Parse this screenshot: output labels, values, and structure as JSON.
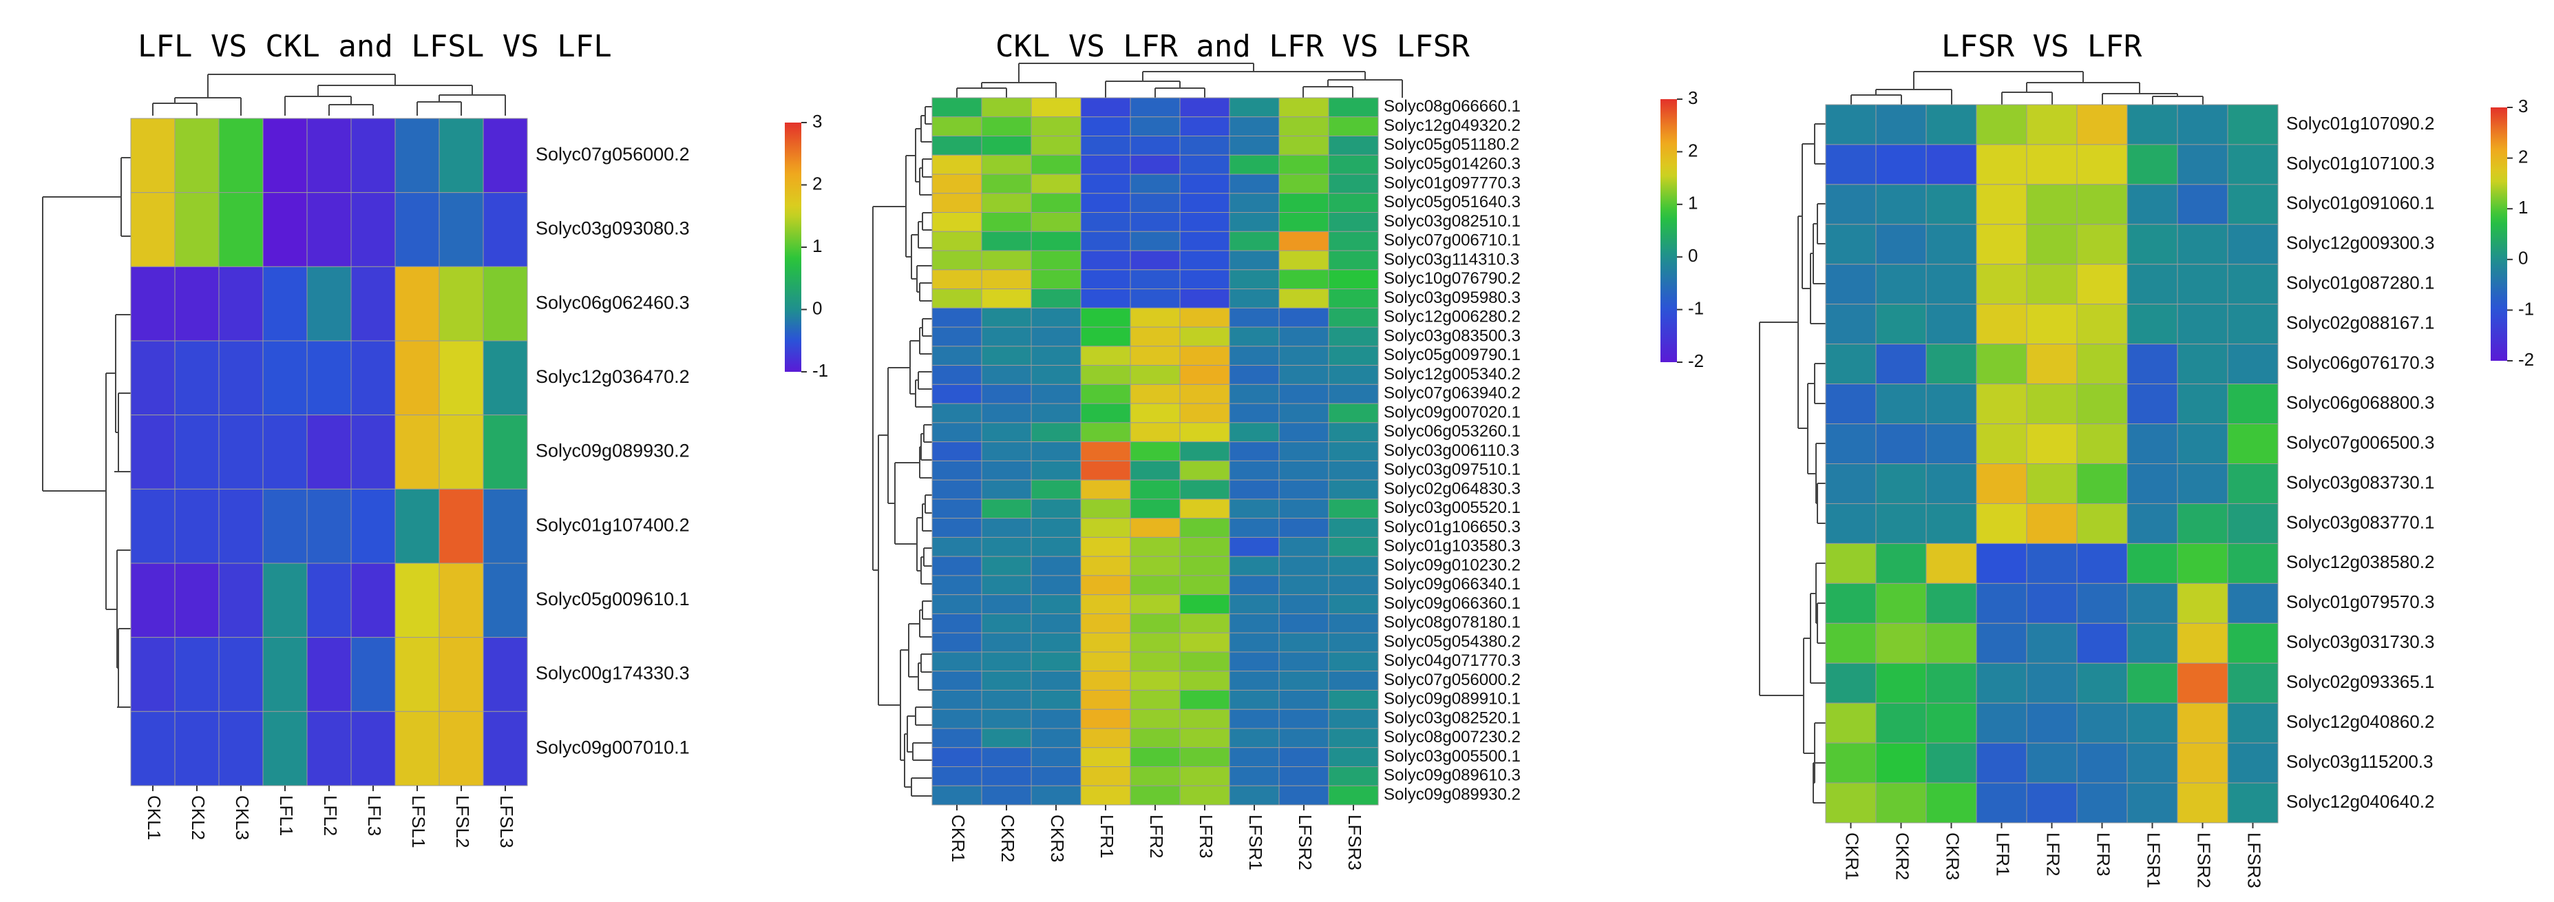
{
  "colors": {
    "scale": [
      "#5a1bd6",
      "#2b52d8",
      "#1f8f8f",
      "#27c43b",
      "#d7d21f",
      "#f0a71e",
      "#e3322a"
    ]
  },
  "chart_data": [
    {
      "type": "heatmap",
      "title": "LFL VS CKL and LFSL VS LFL",
      "columns": [
        "CKL1",
        "CKL2",
        "CKL3",
        "LFL1",
        "LFL2",
        "LFL3",
        "LFSL1",
        "LFSL2",
        "LFSL3"
      ],
      "rows": [
        "Solyc07g056000.2",
        "Solyc03g093080.3",
        "Solyc06g062460.3",
        "Solyc12g036470.2",
        "Solyc09g089930.2",
        "Solyc01g107400.2",
        "Solyc05g009610.1",
        "Solyc00g174330.3",
        "Solyc09g007010.1"
      ],
      "values": [
        [
          1.8,
          1.3,
          0.9,
          -1.0,
          -0.9,
          -0.8,
          -0.3,
          0.0,
          -0.9
        ],
        [
          1.8,
          1.3,
          0.9,
          -1.0,
          -0.9,
          -0.8,
          -0.4,
          -0.3,
          -0.6
        ],
        [
          -0.9,
          -0.9,
          -0.8,
          -0.5,
          -0.1,
          -0.7,
          2.0,
          1.4,
          1.2
        ],
        [
          -0.7,
          -0.6,
          -0.6,
          -0.5,
          -0.5,
          -0.6,
          2.0,
          1.6,
          0.0
        ],
        [
          -0.7,
          -0.6,
          -0.6,
          -0.6,
          -0.8,
          -0.7,
          1.9,
          1.7,
          0.4
        ],
        [
          -0.6,
          -0.6,
          -0.6,
          -0.4,
          -0.4,
          -0.5,
          0.0,
          2.7,
          -0.3
        ],
        [
          -0.9,
          -0.9,
          -0.7,
          0.0,
          -0.6,
          -0.8,
          1.6,
          1.9,
          -0.3
        ],
        [
          -0.7,
          -0.6,
          -0.6,
          0.0,
          -0.8,
          -0.4,
          1.7,
          1.9,
          -0.7
        ],
        [
          -0.6,
          -0.6,
          -0.6,
          0.0,
          -0.7,
          -0.7,
          1.8,
          1.9,
          -0.7
        ]
      ],
      "color_range": [
        -1,
        3
      ],
      "legend_ticks": [
        "3",
        "2",
        "1",
        "0",
        "-1"
      ],
      "legend_values": [
        3,
        2,
        1,
        0,
        -1
      ]
    },
    {
      "type": "heatmap",
      "title": "CKL VS LFR and LFR VS LFSR",
      "columns": [
        "CKR1",
        "CKR2",
        "CKR3",
        "LFR1",
        "LFR2",
        "LFR3",
        "LFSR1",
        "LFSR2",
        "LFSR3"
      ],
      "rows": [
        "Solyc08g066660.1",
        "Solyc12g049320.2",
        "Solyc05g051180.2",
        "Solyc05g014260.3",
        "Solyc01g097770.3",
        "Solyc05g051640.3",
        "Solyc03g082510.1",
        "Solyc07g006710.1",
        "Solyc03g114310.3",
        "Solyc10g076790.2",
        "Solyc03g095980.3",
        "Solyc12g006280.2",
        "Solyc03g083500.3",
        "Solyc05g009790.1",
        "Solyc12g005340.2",
        "Solyc07g063940.2",
        "Solyc09g007020.1",
        "Solyc06g053260.1",
        "Solyc03g006110.3",
        "Solyc03g097510.1",
        "Solyc02g064830.3",
        "Solyc03g005520.1",
        "Solyc01g106650.3",
        "Solyc01g103580.3",
        "Solyc09g010230.2",
        "Solyc09g066340.1",
        "Solyc09g066360.1",
        "Solyc08g078180.1",
        "Solyc05g054380.2",
        "Solyc04g071770.3",
        "Solyc07g056000.2",
        "Solyc09g089910.1",
        "Solyc03g082520.1",
        "Solyc08g007230.2",
        "Solyc03g005500.1",
        "Solyc09g089610.3",
        "Solyc09g089930.2"
      ],
      "values": [
        [
          0.5,
          1.3,
          1.6,
          -1.2,
          -0.7,
          -1.3,
          0.0,
          1.4,
          0.5
        ],
        [
          1.2,
          1.0,
          1.3,
          -1.0,
          -0.6,
          -1.1,
          -0.4,
          1.3,
          1.0
        ],
        [
          0.4,
          0.6,
          1.3,
          -0.9,
          -0.9,
          -0.8,
          -0.4,
          1.3,
          0.2
        ],
        [
          1.7,
          1.3,
          1.0,
          -1.1,
          -1.3,
          -0.9,
          0.5,
          1.0,
          0.4
        ],
        [
          1.9,
          1.1,
          1.4,
          -1.0,
          -0.6,
          -1.0,
          -0.5,
          1.1,
          0.3
        ],
        [
          1.9,
          1.3,
          1.0,
          -1.0,
          -0.8,
          -1.0,
          -0.3,
          0.7,
          0.5
        ],
        [
          1.6,
          1.0,
          1.2,
          -0.9,
          -0.9,
          -1.0,
          -0.2,
          0.7,
          0.3
        ],
        [
          1.4,
          0.5,
          0.6,
          -0.9,
          -0.6,
          -1.0,
          0.4,
          2.3,
          0.4
        ],
        [
          1.3,
          1.3,
          1.0,
          -1.1,
          -1.3,
          -1.0,
          -0.3,
          1.5,
          0.5
        ],
        [
          1.8,
          1.8,
          1.0,
          -1.0,
          -0.9,
          -1.0,
          -0.1,
          0.9,
          0.8
        ],
        [
          1.4,
          1.6,
          0.4,
          -1.0,
          -0.9,
          -1.2,
          -0.2,
          1.5,
          0.6
        ],
        [
          -0.7,
          -0.1,
          -0.2,
          0.8,
          1.7,
          1.9,
          -0.6,
          -0.7,
          0.4
        ],
        [
          -0.6,
          -0.2,
          -0.3,
          0.8,
          1.8,
          1.5,
          -0.2,
          -0.4,
          0.1
        ],
        [
          -0.4,
          -0.1,
          -0.2,
          1.5,
          1.8,
          2.0,
          -0.4,
          -0.3,
          0.0
        ],
        [
          -0.7,
          -0.3,
          -0.2,
          1.3,
          1.4,
          2.1,
          -0.6,
          -0.3,
          -0.2
        ],
        [
          -0.9,
          -0.6,
          -0.4,
          1.0,
          1.8,
          1.9,
          -0.4,
          -0.5,
          -0.4
        ],
        [
          -0.3,
          -0.4,
          -0.3,
          0.7,
          1.6,
          1.9,
          -0.5,
          -0.4,
          0.4
        ],
        [
          -0.4,
          -0.2,
          0.2,
          1.1,
          1.7,
          1.6,
          0.0,
          -0.5,
          -0.1
        ],
        [
          -0.8,
          -0.3,
          -0.3,
          2.6,
          0.9,
          0.2,
          -0.6,
          -0.4,
          -0.2
        ],
        [
          -0.6,
          -0.4,
          -0.2,
          2.7,
          0.2,
          1.3,
          -0.5,
          -0.4,
          -0.3
        ],
        [
          -0.6,
          -0.3,
          0.4,
          1.9,
          0.6,
          0.3,
          -0.6,
          -0.5,
          -0.2
        ],
        [
          -0.6,
          0.4,
          -0.1,
          1.3,
          0.6,
          1.7,
          -0.3,
          -0.4,
          0.4
        ],
        [
          -0.6,
          -0.3,
          -0.2,
          1.5,
          2.0,
          1.1,
          -0.5,
          -0.6,
          0.0
        ],
        [
          -0.3,
          -0.2,
          -0.2,
          1.7,
          1.3,
          1.2,
          -0.9,
          -0.3,
          0.1
        ],
        [
          -0.6,
          -0.1,
          -0.4,
          1.8,
          1.3,
          1.2,
          -0.2,
          -0.3,
          -0.2
        ],
        [
          -0.5,
          -0.2,
          -0.4,
          2.0,
          1.2,
          1.2,
          -0.5,
          -0.3,
          -0.3
        ],
        [
          -0.4,
          -0.4,
          -0.2,
          1.8,
          1.4,
          0.8,
          -0.3,
          -0.4,
          -0.2
        ],
        [
          -0.6,
          -0.2,
          -0.3,
          1.9,
          1.2,
          1.3,
          -0.4,
          -0.5,
          -0.4
        ],
        [
          -0.6,
          -0.3,
          -0.2,
          1.8,
          1.3,
          1.4,
          -0.4,
          -0.3,
          -0.3
        ],
        [
          -0.3,
          -0.2,
          -0.1,
          1.8,
          1.3,
          1.2,
          -0.5,
          -0.4,
          -0.2
        ],
        [
          -0.5,
          -0.2,
          -0.3,
          1.9,
          1.4,
          1.3,
          -0.4,
          -0.3,
          -0.4
        ],
        [
          -0.4,
          -0.3,
          -0.2,
          2.0,
          1.3,
          0.9,
          -0.3,
          -0.4,
          0.0
        ],
        [
          -0.4,
          -0.3,
          -0.4,
          2.1,
          1.3,
          1.3,
          -0.5,
          -0.5,
          -0.2
        ],
        [
          -0.6,
          -0.1,
          -0.4,
          1.9,
          1.2,
          1.3,
          -0.3,
          -0.4,
          -0.1
        ],
        [
          -0.8,
          -0.7,
          -0.5,
          1.7,
          1.0,
          1.1,
          -0.5,
          -0.6,
          0.0
        ],
        [
          -0.7,
          -0.7,
          -0.6,
          1.8,
          1.2,
          1.3,
          -0.5,
          -0.6,
          0.3
        ],
        [
          -0.4,
          -0.6,
          -0.4,
          1.7,
          1.1,
          1.3,
          -0.3,
          -0.6,
          0.6
        ]
      ],
      "color_range": [
        -2,
        3
      ],
      "legend_ticks": [
        "3",
        "2",
        "1",
        "0",
        "-1",
        "-2"
      ],
      "legend_values": [
        3,
        2,
        1,
        0,
        -1,
        -2
      ]
    },
    {
      "type": "heatmap",
      "title": "LFSR VS LFR",
      "columns": [
        "CKR1",
        "CKR2",
        "CKR3",
        "LFR1",
        "LFR2",
        "LFR3",
        "LFSR1",
        "LFSR2",
        "LFSR3"
      ],
      "rows": [
        "Solyc01g107090.2",
        "Solyc01g107100.3",
        "Solyc01g091060.1",
        "Solyc12g009300.3",
        "Solyc01g087280.1",
        "Solyc02g088167.1",
        "Solyc06g076170.3",
        "Solyc06g068800.3",
        "Solyc07g006500.3",
        "Solyc03g083730.1",
        "Solyc03g083770.1",
        "Solyc12g038580.2",
        "Solyc01g079570.3",
        "Solyc03g031730.3",
        "Solyc02g093365.1",
        "Solyc12g040860.2",
        "Solyc03g115200.3",
        "Solyc12g040640.2"
      ],
      "values": [
        [
          -0.2,
          -0.3,
          -0.1,
          1.3,
          1.5,
          1.9,
          -0.1,
          -0.2,
          0.1
        ],
        [
          -0.9,
          -1.0,
          -1.1,
          1.6,
          1.6,
          1.6,
          0.4,
          -0.3,
          0.0
        ],
        [
          -0.3,
          -0.2,
          -0.1,
          1.6,
          1.3,
          1.3,
          -0.2,
          -0.6,
          0.0
        ],
        [
          -0.2,
          -0.4,
          -0.2,
          1.6,
          1.3,
          1.4,
          0.0,
          -0.1,
          -0.2
        ],
        [
          -0.4,
          -0.2,
          -0.2,
          1.5,
          1.4,
          1.6,
          -0.1,
          -0.1,
          -0.1
        ],
        [
          -0.3,
          0.0,
          -0.2,
          1.7,
          1.6,
          1.5,
          0.0,
          -0.1,
          -0.1
        ],
        [
          -0.1,
          -0.8,
          0.2,
          1.2,
          1.8,
          1.4,
          -0.8,
          -0.1,
          -0.2
        ],
        [
          -0.7,
          -0.2,
          -0.2,
          1.5,
          1.4,
          1.3,
          -0.8,
          -0.1,
          0.6
        ],
        [
          -0.5,
          -0.6,
          -0.5,
          1.5,
          1.6,
          1.4,
          -0.4,
          -0.2,
          0.9
        ],
        [
          -0.3,
          -0.1,
          -0.2,
          2.0,
          1.4,
          1.0,
          -0.4,
          -0.3,
          0.4
        ],
        [
          -0.2,
          -0.1,
          -0.1,
          1.6,
          2.0,
          1.4,
          -0.3,
          0.4,
          0.2
        ],
        [
          1.3,
          0.5,
          1.8,
          -1.0,
          -0.8,
          -0.9,
          0.6,
          0.9,
          0.5
        ],
        [
          0.5,
          1.0,
          0.4,
          -0.7,
          -0.8,
          -0.6,
          -0.3,
          1.5,
          -0.4
        ],
        [
          1.0,
          1.2,
          1.1,
          -0.6,
          -0.3,
          -0.9,
          -0.2,
          1.8,
          0.6
        ],
        [
          0.2,
          0.7,
          0.5,
          -0.2,
          -0.3,
          -0.1,
          0.5,
          2.6,
          0.3
        ],
        [
          1.3,
          0.5,
          0.6,
          -0.4,
          -0.5,
          -0.3,
          -0.2,
          1.9,
          -0.1
        ],
        [
          1.0,
          0.8,
          0.3,
          -0.8,
          -0.4,
          -0.5,
          -0.3,
          1.9,
          -0.2
        ],
        [
          1.3,
          1.1,
          0.9,
          -0.7,
          -0.8,
          -0.5,
          -0.3,
          1.8,
          0.0
        ]
      ],
      "color_range": [
        -2,
        3
      ],
      "legend_ticks": [
        "3",
        "2",
        "1",
        "0",
        "-1",
        "-2"
      ],
      "legend_values": [
        3,
        2,
        1,
        0,
        -1,
        -2
      ]
    }
  ]
}
